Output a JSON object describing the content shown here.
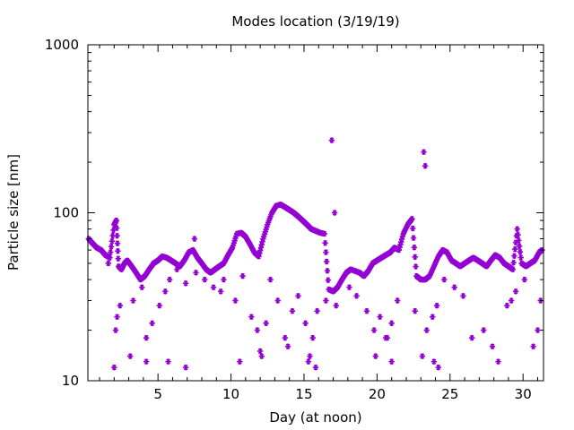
{
  "chart_data": {
    "type": "scatter",
    "title": "Modes location (3/19/19)",
    "xlabel": "Day (at noon)",
    "ylabel": "Particle size [nm]",
    "xlim": [
      0.2,
      31.4
    ],
    "ylim": [
      10,
      1000
    ],
    "yscale": "log",
    "x_ticks": [
      5,
      10,
      15,
      20,
      25,
      30
    ],
    "x_tick_labels": [
      "5",
      "10",
      "15",
      "20",
      "25",
      "30"
    ],
    "y_ticks": [
      10,
      100,
      1000
    ],
    "y_tick_labels": [
      "10",
      "100",
      "1000"
    ],
    "grid": false,
    "legend": "none",
    "marker_color": "#9400d3",
    "marker": "asterisk",
    "series": [
      {
        "x": [
          0.25,
          0.5,
          0.8,
          1.1,
          1.4,
          1.7,
          2.0,
          2.15,
          2.3,
          2.5,
          2.7,
          2.9,
          3.2,
          3.5,
          3.8,
          4.1,
          4.4,
          4.7,
          5.0,
          5.3,
          5.6,
          5.9,
          6.2,
          6.5,
          6.8,
          7.1,
          7.4,
          7.7,
          8.0,
          8.3,
          8.6,
          8.9,
          9.2,
          9.5,
          9.8,
          10.1,
          10.4,
          10.7,
          11.0,
          11.3,
          11.6,
          11.9,
          12.2,
          12.5,
          12.8,
          13.1,
          13.4,
          13.7,
          14.0,
          14.3,
          14.6,
          14.9,
          15.2,
          15.5,
          15.8,
          16.1,
          16.4,
          16.7,
          17.0,
          17.3,
          17.6,
          17.9,
          18.2,
          18.5,
          18.8,
          19.1,
          19.4,
          19.7,
          20.0,
          20.3,
          20.6,
          20.9,
          21.2,
          21.5,
          21.8,
          22.1,
          22.4,
          22.7,
          23.0,
          23.3,
          23.6,
          23.9,
          24.2,
          24.5,
          24.8,
          25.1,
          25.4,
          25.7,
          26.0,
          26.3,
          26.6,
          26.9,
          27.2,
          27.5,
          27.8,
          28.1,
          28.4,
          28.7,
          29.0,
          29.3,
          29.6,
          29.9,
          30.2,
          30.5,
          30.8,
          31.1,
          31.3
        ],
        "y": [
          70,
          66,
          62,
          60,
          56,
          54,
          85,
          90,
          48,
          46,
          50,
          52,
          48,
          44,
          40,
          42,
          46,
          50,
          52,
          55,
          54,
          52,
          50,
          48,
          52,
          58,
          60,
          54,
          50,
          46,
          44,
          46,
          48,
          50,
          56,
          62,
          75,
          76,
          72,
          65,
          58,
          55,
          70,
          85,
          100,
          110,
          112,
          108,
          104,
          100,
          95,
          90,
          85,
          80,
          78,
          76,
          75,
          35,
          34,
          36,
          40,
          44,
          46,
          45,
          44,
          42,
          45,
          50,
          52,
          54,
          56,
          58,
          62,
          60,
          75,
          85,
          92,
          42,
          40,
          40,
          42,
          48,
          55,
          60,
          58,
          52,
          50,
          48,
          50,
          52,
          54,
          52,
          50,
          48,
          52,
          56,
          54,
          50,
          48,
          46,
          80,
          50,
          48,
          50,
          52,
          58,
          60
        ]
      },
      {
        "x": [
          2.1,
          2.2,
          2.4,
          3.1,
          3.3,
          3.9,
          4.2,
          4.6,
          5.1,
          5.5,
          5.8,
          6.3,
          6.9,
          7.6,
          8.2,
          8.8,
          9.3,
          10.3,
          10.8,
          11.4,
          11.8,
          12.1,
          12.4,
          12.7,
          13.2,
          13.7,
          14.2,
          14.6,
          15.1,
          15.4,
          15.6,
          15.9,
          16.5,
          17.2,
          18.1,
          18.6,
          19.3,
          19.8,
          20.2,
          20.7,
          21.0,
          21.4,
          22.6,
          23.1,
          23.4,
          23.8,
          24.1,
          24.6,
          25.3,
          25.9,
          26.5,
          27.3,
          27.9,
          28.3,
          28.9,
          29.2,
          29.5,
          30.1,
          30.7,
          31.0,
          31.2
        ],
        "y": [
          20,
          24,
          28,
          14,
          30,
          36,
          18,
          22,
          28,
          34,
          40,
          46,
          38,
          44,
          40,
          36,
          34,
          30,
          42,
          24,
          20,
          14,
          22,
          40,
          30,
          18,
          26,
          32,
          22,
          14,
          18,
          26,
          30,
          28,
          36,
          32,
          26,
          20,
          24,
          18,
          22,
          30,
          26,
          14,
          20,
          24,
          28,
          40,
          36,
          32,
          18,
          20,
          16,
          13,
          28,
          30,
          34,
          40,
          16,
          20,
          30
        ]
      },
      {
        "x": [
          1.6,
          2.0,
          4.2,
          5.7,
          6.9,
          7.5,
          9.5,
          10.6,
          12.0,
          13.9,
          15.3,
          15.8,
          16.9,
          17.1,
          19.9,
          20.6,
          21.0,
          23.2,
          23.3,
          23.9,
          24.2
        ],
        "y": [
          50,
          12,
          13,
          13,
          12,
          70,
          40,
          13,
          15,
          16,
          13,
          12,
          270,
          100,
          14,
          18,
          13,
          230,
          190,
          13,
          12
        ]
      }
    ]
  }
}
